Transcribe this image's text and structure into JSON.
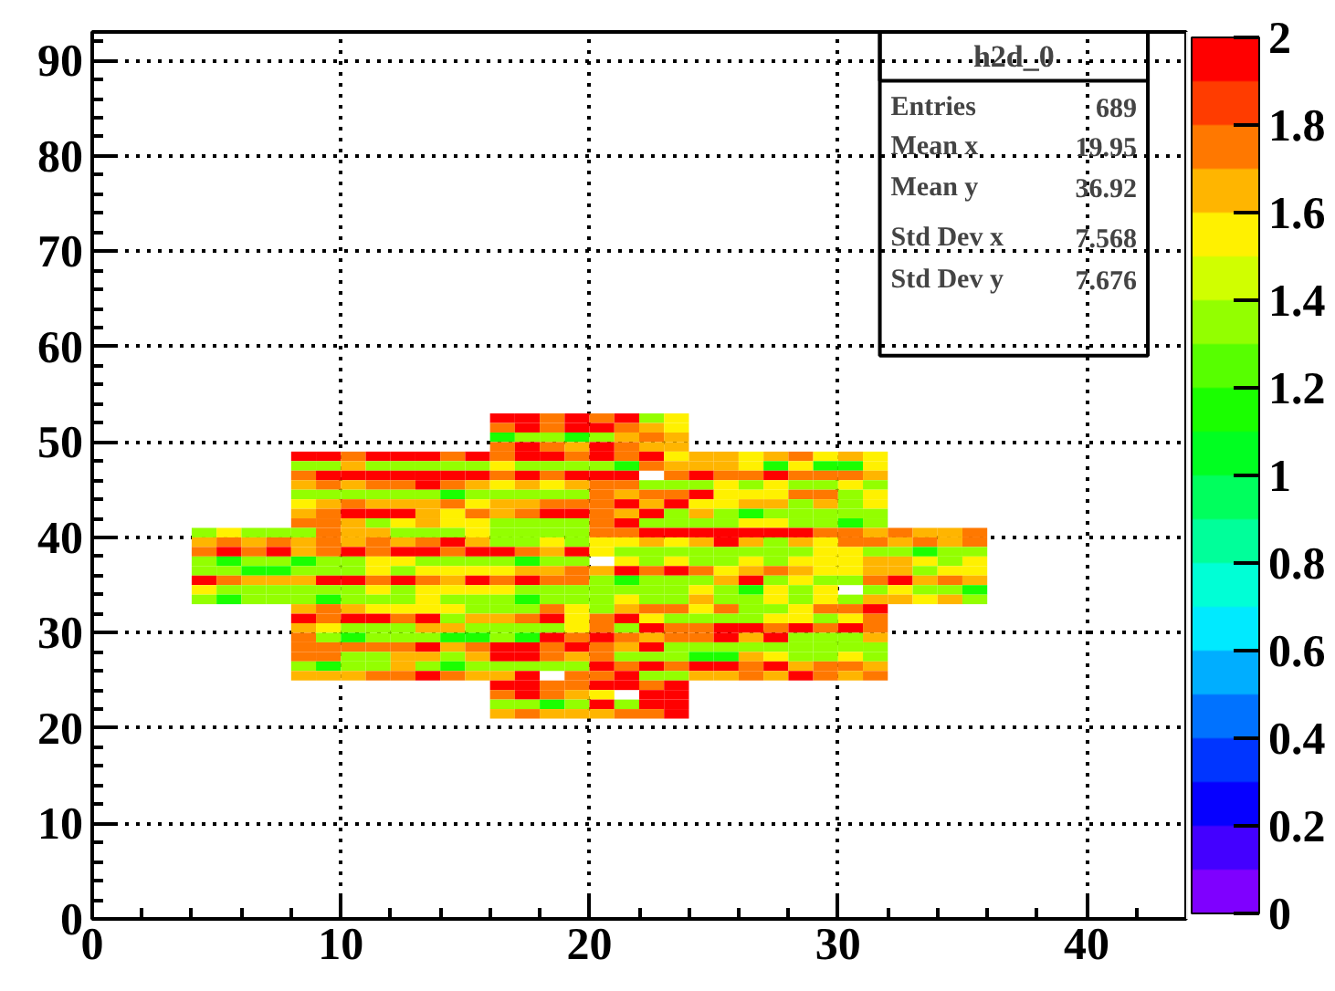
{
  "chart_data": {
    "type": "scatter",
    "marker": "square",
    "title": "h2d_0",
    "annotations": [
      "Entries 689",
      "Mean x 19.95",
      "Mean y 36.92",
      "Std Dev x 7.568",
      "Std Dev y 7.676"
    ],
    "xlim": [
      0,
      44
    ],
    "xticks": [
      0,
      10,
      20,
      30,
      40
    ],
    "ylim": [
      0,
      93
    ],
    "yticks": [
      0,
      10,
      20,
      30,
      40,
      50,
      60,
      70,
      80,
      90
    ],
    "clim": [
      0,
      2
    ],
    "cticks": [
      0,
      0.2,
      0.4,
      0.6,
      0.8,
      1,
      1.2,
      1.4,
      1.6,
      1.8,
      2
    ],
    "grid": true,
    "x": [
      16.5,
      17.5,
      18.5,
      19.5,
      20.5,
      21.5,
      22.5,
      23.5,
      16.5,
      17.5,
      18.5,
      19.5,
      20.5,
      21.5,
      22.5,
      23.5,
      16.5,
      17.5,
      18.5,
      19.5,
      20.5,
      21.5,
      22.5,
      23.5,
      16.5,
      17.5,
      18.5,
      19.5,
      20.5,
      21.5,
      22.5,
      23.5,
      8.5,
      9.5,
      10.5,
      11.5,
      12.5,
      13.5,
      14.5,
      15.5,
      16.5,
      17.5,
      18.5,
      19.5,
      20.5,
      21.5,
      22.5,
      23.5,
      24.5,
      25.5,
      26.5,
      27.5,
      28.5,
      29.5,
      30.5,
      31.5,
      8.5,
      9.5,
      10.5,
      11.5,
      12.5,
      13.5,
      14.5,
      15.5,
      16.5,
      17.5,
      18.5,
      19.5,
      20.5,
      21.5,
      22.5,
      23.5,
      24.5,
      25.5,
      26.5,
      27.5,
      28.5,
      29.5,
      30.5,
      31.5,
      8.5,
      9.5,
      10.5,
      11.5,
      12.5,
      13.5,
      14.5,
      15.5,
      16.5,
      17.5,
      18.5,
      19.5,
      20.5,
      21.5,
      23.5,
      24.5,
      25.5,
      26.5,
      27.5,
      28.5,
      29.5,
      30.5,
      31.5,
      8.5,
      9.5,
      10.5,
      11.5,
      12.5,
      13.5,
      14.5,
      15.5,
      16.5,
      17.5,
      18.5,
      19.5,
      20.5,
      21.5,
      22.5,
      23.5,
      24.5,
      25.5,
      26.5,
      27.5,
      28.5,
      29.5,
      30.5,
      31.5,
      8.5,
      9.5,
      10.5,
      11.5,
      12.5,
      13.5,
      14.5,
      15.5,
      16.5,
      17.5,
      18.5,
      19.5,
      20.5,
      21.5,
      22.5,
      23.5,
      24.5,
      25.5,
      26.5,
      27.5,
      28.5,
      29.5,
      30.5,
      31.5,
      8.5,
      9.5,
      10.5,
      11.5,
      12.5,
      13.5,
      14.5,
      15.5,
      16.5,
      17.5,
      18.5,
      19.5,
      20.5,
      21.5,
      22.5,
      23.5,
      24.5,
      25.5,
      26.5,
      27.5,
      28.5,
      29.5,
      30.5,
      31.5,
      8.5,
      9.5,
      10.5,
      11.5,
      12.5,
      13.5,
      14.5,
      15.5,
      16.5,
      17.5,
      18.5,
      19.5,
      20.5,
      21.5,
      22.5,
      23.5,
      24.5,
      25.5,
      26.5,
      27.5,
      28.5,
      29.5,
      30.5,
      31.5,
      8.5,
      9.5,
      10.5,
      11.5,
      12.5,
      13.5,
      14.5,
      15.5,
      16.5,
      17.5,
      18.5,
      19.5,
      20.5,
      21.5,
      22.5,
      23.5,
      24.5,
      25.5,
      26.5,
      27.5,
      28.5,
      29.5,
      30.5,
      31.5,
      4.5,
      5.5,
      6.5,
      7.5,
      8.5,
      9.5,
      10.5,
      11.5,
      12.5,
      13.5,
      14.5,
      15.5,
      16.5,
      17.5,
      18.5,
      19.5,
      20.5,
      21.5,
      22.5,
      23.5,
      24.5,
      25.5,
      26.5,
      27.5,
      28.5,
      29.5,
      30.5,
      31.5,
      32.5,
      33.5,
      34.5,
      35.5,
      4.5,
      5.5,
      6.5,
      7.5,
      8.5,
      9.5,
      10.5,
      11.5,
      12.5,
      13.5,
      14.5,
      15.5,
      16.5,
      17.5,
      18.5,
      19.5,
      20.5,
      21.5,
      22.5,
      23.5,
      24.5,
      25.5,
      26.5,
      27.5,
      28.5,
      29.5,
      30.5,
      31.5,
      32.5,
      33.5,
      34.5,
      35.5,
      4.5,
      5.5,
      6.5,
      7.5,
      8.5,
      9.5,
      10.5,
      11.5,
      12.5,
      13.5,
      14.5,
      15.5,
      16.5,
      17.5,
      18.5,
      19.5,
      20.5,
      21.5,
      22.5,
      23.5,
      24.5,
      25.5,
      26.5,
      27.5,
      28.5,
      29.5,
      30.5,
      31.5,
      32.5,
      33.5,
      34.5,
      35.5,
      4.5,
      5.5,
      6.5,
      7.5,
      8.5,
      9.5,
      10.5,
      11.5,
      12.5,
      13.5,
      14.5,
      15.5,
      16.5,
      17.5,
      18.5,
      19.5,
      21.5,
      22.5,
      23.5,
      24.5,
      25.5,
      26.5,
      27.5,
      28.5,
      29.5,
      30.5,
      31.5,
      32.5,
      33.5,
      34.5,
      35.5,
      4.5,
      5.5,
      6.5,
      7.5,
      8.5,
      9.5,
      10.5,
      11.5,
      12.5,
      13.5,
      14.5,
      15.5,
      16.5,
      17.5,
      18.5,
      19.5,
      20.5,
      21.5,
      22.5,
      23.5,
      24.5,
      25.5,
      26.5,
      27.5,
      28.5,
      29.5,
      30.5,
      31.5,
      32.5,
      33.5,
      34.5,
      35.5,
      4.5,
      5.5,
      6.5,
      7.5,
      8.5,
      9.5,
      10.5,
      11.5,
      12.5,
      13.5,
      14.5,
      15.5,
      16.5,
      17.5,
      18.5,
      19.5,
      20.5,
      21.5,
      22.5,
      23.5,
      24.5,
      25.5,
      26.5,
      27.5,
      28.5,
      29.5,
      30.5,
      31.5,
      32.5,
      33.5,
      34.5,
      35.5,
      4.5,
      5.5,
      6.5,
      7.5,
      8.5,
      9.5,
      10.5,
      11.5,
      12.5,
      13.5,
      14.5,
      15.5,
      16.5,
      17.5,
      18.5,
      19.5,
      20.5,
      21.5,
      22.5,
      23.5,
      24.5,
      25.5,
      26.5,
      27.5,
      28.5,
      29.5,
      31.5,
      32.5,
      33.5,
      34.5,
      35.5,
      4.5,
      5.5,
      6.5,
      7.5,
      8.5,
      9.5,
      10.5,
      11.5,
      12.5,
      13.5,
      14.5,
      15.5,
      16.5,
      17.5,
      18.5,
      19.5,
      20.5,
      21.5,
      22.5,
      23.5,
      24.5,
      25.5,
      26.5,
      27.5,
      28.5,
      29.5,
      30.5,
      31.5,
      32.5,
      33.5,
      34.5,
      35.5,
      8.5,
      9.5,
      10.5,
      11.5,
      12.5,
      13.5,
      14.5,
      15.5,
      16.5,
      17.5,
      18.5,
      19.5,
      20.5,
      21.5,
      22.5,
      23.5,
      24.5,
      25.5,
      26.5,
      27.5,
      28.5,
      29.5,
      30.5,
      31.5,
      8.5,
      9.5,
      10.5,
      11.5,
      12.5,
      13.5,
      14.5,
      15.5,
      16.5,
      17.5,
      18.5,
      19.5,
      20.5,
      21.5,
      22.5,
      23.5,
      24.5,
      25.5,
      26.5,
      27.5,
      28.5,
      29.5,
      30.5,
      31.5,
      8.5,
      9.5,
      10.5,
      11.5,
      12.5,
      13.5,
      14.5,
      15.5,
      16.5,
      17.5,
      18.5,
      19.5,
      20.5,
      21.5,
      22.5,
      23.5,
      24.5,
      25.5,
      26.5,
      27.5,
      28.5,
      29.5,
      30.5,
      31.5,
      8.5,
      9.5,
      10.5,
      11.5,
      12.5,
      13.5,
      14.5,
      15.5,
      16.5,
      17.5,
      18.5,
      19.5,
      20.5,
      21.5,
      22.5,
      23.5,
      24.5,
      25.5,
      26.5,
      27.5,
      28.5,
      29.5,
      30.5,
      31.5,
      8.5,
      9.5,
      10.5,
      11.5,
      12.5,
      13.5,
      14.5,
      15.5,
      16.5,
      17.5,
      18.5,
      19.5,
      20.5,
      21.5,
      22.5,
      23.5,
      24.5,
      25.5,
      26.5,
      27.5,
      28.5,
      29.5,
      30.5,
      31.5,
      8.5,
      9.5,
      10.5,
      11.5,
      12.5,
      13.5,
      14.5,
      15.5,
      16.5,
      17.5,
      18.5,
      19.5,
      20.5,
      21.5,
      22.5,
      23.5,
      24.5,
      25.5,
      26.5,
      27.5,
      28.5,
      29.5,
      30.5,
      31.5,
      8.5,
      9.5,
      10.5,
      11.5,
      12.5,
      13.5,
      14.5,
      15.5,
      16.5,
      17.5,
      18.5,
      19.5,
      20.5,
      21.5,
      22.5,
      23.5,
      24.5,
      25.5,
      26.5,
      27.5,
      28.5,
      29.5,
      30.5,
      31.5,
      8.5,
      9.5,
      10.5,
      11.5,
      12.5,
      13.5,
      14.5,
      15.5,
      16.5,
      17.5,
      19.5,
      20.5,
      21.5,
      22.5,
      23.5,
      24.5,
      25.5,
      26.5,
      27.5,
      28.5,
      29.5,
      30.5,
      31.5,
      16.5,
      17.5,
      18.5,
      19.5,
      20.5,
      21.5,
      22.5,
      23.5,
      16.5,
      17.5,
      18.5,
      19.5,
      20.5,
      22.5,
      23.5,
      16.5,
      17.5,
      18.5,
      19.5,
      20.5,
      21.5,
      22.5,
      23.5,
      16.5,
      17.5,
      18.5,
      19.5,
      20.5,
      21.5,
      22.5,
      23.5
    ],
    "values": [
      52.5,
      52.5,
      52.5,
      52.5,
      52.5,
      52.5,
      52.5,
      52.5,
      51.5,
      51.5,
      51.5,
      51.5,
      51.5,
      51.5,
      51.5,
      51.5,
      50.5,
      50.5,
      50.5,
      50.5,
      50.5,
      50.5,
      50.5,
      50.5,
      49.5,
      49.5,
      49.5,
      49.5,
      49.5,
      49.5,
      49.5,
      49.5,
      48.5,
      48.5,
      48.5,
      48.5,
      48.5,
      48.5,
      48.5,
      48.5,
      48.5,
      48.5,
      48.5,
      48.5,
      48.5,
      48.5,
      48.5,
      48.5,
      48.5,
      48.5,
      48.5,
      48.5,
      48.5,
      48.5,
      48.5,
      48.5,
      47.5,
      47.5,
      47.5,
      47.5,
      47.5,
      47.5,
      47.5,
      47.5,
      47.5,
      47.5,
      47.5,
      47.5,
      47.5,
      47.5,
      47.5,
      47.5,
      47.5,
      47.5,
      47.5,
      47.5,
      47.5,
      47.5,
      47.5,
      47.5,
      46.5,
      46.5,
      46.5,
      46.5,
      46.5,
      46.5,
      46.5,
      46.5,
      46.5,
      46.5,
      46.5,
      46.5,
      46.5,
      46.5,
      46.5,
      46.5,
      46.5,
      46.5,
      46.5,
      46.5,
      46.5,
      46.5,
      46.5,
      45.5,
      45.5,
      45.5,
      45.5,
      45.5,
      45.5,
      45.5,
      45.5,
      45.5,
      45.5,
      45.5,
      45.5,
      45.5,
      45.5,
      45.5,
      45.5,
      45.5,
      45.5,
      45.5,
      45.5,
      45.5,
      45.5,
      45.5,
      45.5,
      44.5,
      44.5,
      44.5,
      44.5,
      44.5,
      44.5,
      44.5,
      44.5,
      44.5,
      44.5,
      44.5,
      44.5,
      44.5,
      44.5,
      44.5,
      44.5,
      44.5,
      44.5,
      44.5,
      44.5,
      44.5,
      44.5,
      44.5,
      44.5,
      43.5,
      43.5,
      43.5,
      43.5,
      43.5,
      43.5,
      43.5,
      43.5,
      43.5,
      43.5,
      43.5,
      43.5,
      43.5,
      43.5,
      43.5,
      43.5,
      43.5,
      43.5,
      43.5,
      43.5,
      43.5,
      43.5,
      43.5,
      43.5,
      42.5,
      42.5,
      42.5,
      42.5,
      42.5,
      42.5,
      42.5,
      42.5,
      42.5,
      42.5,
      42.5,
      42.5,
      42.5,
      42.5,
      42.5,
      42.5,
      42.5,
      42.5,
      42.5,
      42.5,
      42.5,
      42.5,
      42.5,
      42.5,
      41.5,
      41.5,
      41.5,
      41.5,
      41.5,
      41.5,
      41.5,
      41.5,
      41.5,
      41.5,
      41.5,
      41.5,
      41.5,
      41.5,
      41.5,
      41.5,
      41.5,
      41.5,
      41.5,
      41.5,
      41.5,
      41.5,
      41.5,
      41.5,
      40.5,
      40.5,
      40.5,
      40.5,
      40.5,
      40.5,
      40.5,
      40.5,
      40.5,
      40.5,
      40.5,
      40.5,
      40.5,
      40.5,
      40.5,
      40.5,
      40.5,
      40.5,
      40.5,
      40.5,
      40.5,
      40.5,
      40.5,
      40.5,
      40.5,
      40.5,
      40.5,
      40.5,
      40.5,
      40.5,
      40.5,
      40.5,
      39.5,
      39.5,
      39.5,
      39.5,
      39.5,
      39.5,
      39.5,
      39.5,
      39.5,
      39.5,
      39.5,
      39.5,
      39.5,
      39.5,
      39.5,
      39.5,
      39.5,
      39.5,
      39.5,
      39.5,
      39.5,
      39.5,
      39.5,
      39.5,
      39.5,
      39.5,
      39.5,
      39.5,
      39.5,
      39.5,
      39.5,
      39.5,
      38.5,
      38.5,
      38.5,
      38.5,
      38.5,
      38.5,
      38.5,
      38.5,
      38.5,
      38.5,
      38.5,
      38.5,
      38.5,
      38.5,
      38.5,
      38.5,
      38.5,
      38.5,
      38.5,
      38.5,
      38.5,
      38.5,
      38.5,
      38.5,
      38.5,
      38.5,
      38.5,
      38.5,
      38.5,
      38.5,
      38.5,
      38.5,
      37.5,
      37.5,
      37.5,
      37.5,
      37.5,
      37.5,
      37.5,
      37.5,
      37.5,
      37.5,
      37.5,
      37.5,
      37.5,
      37.5,
      37.5,
      37.5,
      37.5,
      37.5,
      37.5,
      37.5,
      37.5,
      37.5,
      37.5,
      37.5,
      37.5,
      37.5,
      37.5,
      37.5,
      37.5,
      37.5,
      37.5,
      36.5,
      36.5,
      36.5,
      36.5,
      36.5,
      36.5,
      36.5,
      36.5,
      36.5,
      36.5,
      36.5,
      36.5,
      36.5,
      36.5,
      36.5,
      36.5,
      36.5,
      36.5,
      36.5,
      36.5,
      36.5,
      36.5,
      36.5,
      36.5,
      36.5,
      36.5,
      36.5,
      36.5,
      36.5,
      36.5,
      36.5,
      36.5,
      35.5,
      35.5,
      35.5,
      35.5,
      35.5,
      35.5,
      35.5,
      35.5,
      35.5,
      35.5,
      35.5,
      35.5,
      35.5,
      35.5,
      35.5,
      35.5,
      35.5,
      35.5,
      35.5,
      35.5,
      35.5,
      35.5,
      35.5,
      35.5,
      35.5,
      35.5,
      35.5,
      35.5,
      35.5,
      35.5,
      35.5,
      35.5,
      34.5,
      34.5,
      34.5,
      34.5,
      34.5,
      34.5,
      34.5,
      34.5,
      34.5,
      34.5,
      34.5,
      34.5,
      34.5,
      34.5,
      34.5,
      34.5,
      34.5,
      34.5,
      34.5,
      34.5,
      34.5,
      34.5,
      34.5,
      34.5,
      34.5,
      34.5,
      34.5,
      34.5,
      34.5,
      34.5,
      34.5,
      33.5,
      33.5,
      33.5,
      33.5,
      33.5,
      33.5,
      33.5,
      33.5,
      33.5,
      33.5,
      33.5,
      33.5,
      33.5,
      33.5,
      33.5,
      33.5,
      33.5,
      33.5,
      33.5,
      33.5,
      33.5,
      33.5,
      33.5,
      33.5,
      33.5,
      33.5,
      33.5,
      33.5,
      33.5,
      33.5,
      33.5,
      33.5,
      32.5,
      32.5,
      32.5,
      32.5,
      32.5,
      32.5,
      32.5,
      32.5,
      32.5,
      32.5,
      32.5,
      32.5,
      32.5,
      32.5,
      32.5,
      32.5,
      32.5,
      32.5,
      32.5,
      32.5,
      32.5,
      32.5,
      32.5,
      32.5,
      31.5,
      31.5,
      31.5,
      31.5,
      31.5,
      31.5,
      31.5,
      31.5,
      31.5,
      31.5,
      31.5,
      31.5,
      31.5,
      31.5,
      31.5,
      31.5,
      31.5,
      31.5,
      31.5,
      31.5,
      31.5,
      31.5,
      31.5,
      31.5,
      30.5,
      30.5,
      30.5,
      30.5,
      30.5,
      30.5,
      30.5,
      30.5,
      30.5,
      30.5,
      30.5,
      30.5,
      30.5,
      30.5,
      30.5,
      30.5,
      30.5,
      30.5,
      30.5,
      30.5,
      30.5,
      30.5,
      30.5,
      30.5,
      29.5,
      29.5,
      29.5,
      29.5,
      29.5,
      29.5,
      29.5,
      29.5,
      29.5,
      29.5,
      29.5,
      29.5,
      29.5,
      29.5,
      29.5,
      29.5,
      29.5,
      29.5,
      29.5,
      29.5,
      29.5,
      29.5,
      29.5,
      29.5,
      28.5,
      28.5,
      28.5,
      28.5,
      28.5,
      28.5,
      28.5,
      28.5,
      28.5,
      28.5,
      28.5,
      28.5,
      28.5,
      28.5,
      28.5,
      28.5,
      28.5,
      28.5,
      28.5,
      28.5,
      28.5,
      28.5,
      28.5,
      28.5,
      27.5,
      27.5,
      27.5,
      27.5,
      27.5,
      27.5,
      27.5,
      27.5,
      27.5,
      27.5,
      27.5,
      27.5,
      27.5,
      27.5,
      27.5,
      27.5,
      27.5,
      27.5,
      27.5,
      27.5,
      27.5,
      27.5,
      27.5,
      27.5,
      26.5,
      26.5,
      26.5,
      26.5,
      26.5,
      26.5,
      26.5,
      26.5,
      26.5,
      26.5,
      26.5,
      26.5,
      26.5,
      26.5,
      26.5,
      26.5,
      26.5,
      26.5,
      26.5,
      26.5,
      26.5,
      26.5,
      26.5,
      26.5,
      25.5,
      25.5,
      25.5,
      25.5,
      25.5,
      25.5,
      25.5,
      25.5,
      25.5,
      25.5,
      25.5,
      25.5,
      25.5,
      25.5,
      25.5,
      25.5,
      25.5,
      25.5,
      25.5,
      25.5,
      25.5,
      25.5,
      25.5,
      24.5,
      24.5,
      24.5,
      24.5,
      24.5,
      24.5,
      24.5,
      24.5,
      23.5,
      23.5,
      23.5,
      23.5,
      23.5,
      23.5,
      23.5,
      22.5,
      22.5,
      22.5,
      22.5,
      22.5,
      22.5,
      22.5,
      22.5,
      21.5,
      21.5,
      21.5,
      21.5,
      21.5,
      21.5,
      21.5,
      21.5
    ],
    "cvalues": [
      1.95,
      1.95,
      1.75,
      1.95,
      1.75,
      1.95,
      1.35,
      1.55,
      1.75,
      1.95,
      1.75,
      1.95,
      1.95,
      1.75,
      1.65,
      1.55,
      1.15,
      1.35,
      1.35,
      1.15,
      1.35,
      1.65,
      1.75,
      1.65,
      1.75,
      1.95,
      1.75,
      1.65,
      1.95,
      1.75,
      1.65,
      1.65,
      1.95,
      1.95,
      1.75,
      1.95,
      1.95,
      1.95,
      1.75,
      1.95,
      1.75,
      1.95,
      1.95,
      1.75,
      1.95,
      1.75,
      1.95,
      1.55,
      1.65,
      1.65,
      1.55,
      1.65,
      1.75,
      1.55,
      1.65,
      1.55,
      1.35,
      1.35,
      1.65,
      1.35,
      1.35,
      1.35,
      1.35,
      1.35,
      1.55,
      1.35,
      1.35,
      1.35,
      1.35,
      1.15,
      1.75,
      1.65,
      1.65,
      1.65,
      1.55,
      1.15,
      1.55,
      1.15,
      1.15,
      1.55,
      1.75,
      1.95,
      1.95,
      1.95,
      1.95,
      1.95,
      1.95,
      1.95,
      1.75,
      1.95,
      1.75,
      1.95,
      1.95,
      1.95,
      1.75,
      1.95,
      1.75,
      1.75,
      1.95,
      1.75,
      1.75,
      1.75,
      1.65,
      1.65,
      1.75,
      1.65,
      1.75,
      1.75,
      1.95,
      1.75,
      1.65,
      1.55,
      1.65,
      1.55,
      1.65,
      1.75,
      1.75,
      1.35,
      1.35,
      1.35,
      1.55,
      1.35,
      1.55,
      1.35,
      1.35,
      1.55,
      1.35,
      1.35,
      1.35,
      1.35,
      1.35,
      1.35,
      1.35,
      1.15,
      1.35,
      1.35,
      1.35,
      1.35,
      1.35,
      1.75,
      1.65,
      1.75,
      1.75,
      1.95,
      1.55,
      1.55,
      1.55,
      1.75,
      1.75,
      1.35,
      1.55,
      1.55,
      1.65,
      1.75,
      1.65,
      1.65,
      1.65,
      1.75,
      1.55,
      1.65,
      1.65,
      1.75,
      1.75,
      1.75,
      1.95,
      1.65,
      1.95,
      1.55,
      1.55,
      1.65,
      1.65,
      1.35,
      1.65,
      1.35,
      1.55,
      1.65,
      1.75,
      1.95,
      1.95,
      1.95,
      1.65,
      1.55,
      1.75,
      1.65,
      1.75,
      1.95,
      1.95,
      1.75,
      1.65,
      1.95,
      1.35,
      1.65,
      1.35,
      1.15,
      1.35,
      1.35,
      1.35,
      1.35,
      1.35,
      1.75,
      1.75,
      1.65,
      1.35,
      1.55,
      1.65,
      1.55,
      1.55,
      1.35,
      1.35,
      1.35,
      1.35,
      1.75,
      1.95,
      1.35,
      1.35,
      1.35,
      1.35,
      1.55,
      1.55,
      1.35,
      1.35,
      1.15,
      1.35,
      1.35,
      1.55,
      1.35,
      1.35,
      1.35,
      1.75,
      1.65,
      1.65,
      1.35,
      1.35,
      1.35,
      1.55,
      1.35,
      1.35,
      1.35,
      1.35,
      1.75,
      1.75,
      1.95,
      1.95,
      1.95,
      1.95,
      1.95,
      1.95,
      1.95,
      1.75,
      1.75,
      1.65,
      1.75,
      1.65,
      1.65,
      1.75,
      1.65,
      1.75,
      1.65,
      1.75,
      1.65,
      1.75,
      1.65,
      1.75,
      1.65,
      1.75,
      1.95,
      1.65,
      1.35,
      1.35,
      1.55,
      1.35,
      1.55,
      1.55,
      1.65,
      1.55,
      1.65,
      1.95,
      1.65,
      1.35,
      1.65,
      1.55,
      1.75,
      1.75,
      1.65,
      1.75,
      1.65,
      1.75,
      1.75,
      1.95,
      1.75,
      1.95,
      1.65,
      1.75,
      1.95,
      1.75,
      1.95,
      1.95,
      1.75,
      1.95,
      1.95,
      1.75,
      1.65,
      1.95,
      1.55,
      1.35,
      1.35,
      1.35,
      1.35,
      1.35,
      1.35,
      1.35,
      1.35,
      1.55,
      1.55,
      1.35,
      1.35,
      1.15,
      1.35,
      1.35,
      1.35,
      1.15,
      1.35,
      1.35,
      1.15,
      1.35,
      1.35,
      1.55,
      1.55,
      1.35,
      1.35,
      1.35,
      1.35,
      1.15,
      1.35,
      1.35,
      1.55,
      1.35,
      1.55,
      1.35,
      1.35,
      1.55,
      1.35,
      1.55,
      1.55,
      1.55,
      1.65,
      1.65,
      1.55,
      1.35,
      1.55,
      1.35,
      1.35,
      1.15,
      1.15,
      1.35,
      1.35,
      1.35,
      1.55,
      1.35,
      1.55,
      1.55,
      1.55,
      1.55,
      1.65,
      1.65,
      1.75,
      1.65,
      1.95,
      1.75,
      1.95,
      1.75,
      1.55,
      1.65,
      1.75,
      1.65,
      1.55,
      1.55,
      1.65,
      1.65,
      1.35,
      1.55,
      1.55,
      1.95,
      1.75,
      1.65,
      1.65,
      1.65,
      1.95,
      1.95,
      1.75,
      1.95,
      1.75,
      1.65,
      1.95,
      1.75,
      1.95,
      1.75,
      1.75,
      1.35,
      1.15,
      1.35,
      1.35,
      1.35,
      1.65,
      1.95,
      1.35,
      1.55,
      1.35,
      1.35,
      1.75,
      1.95,
      1.65,
      1.75,
      1.65,
      1.55,
      1.35,
      1.35,
      1.35,
      1.35,
      1.35,
      1.35,
      1.55,
      1.35,
      1.55,
      1.55,
      1.55,
      1.55,
      1.35,
      1.35,
      1.35,
      1.35,
      1.35,
      1.35,
      1.35,
      1.55,
      1.35,
      1.15,
      1.55,
      1.35,
      1.55,
      1.35,
      1.55,
      1.35,
      1.35,
      1.15,
      1.35,
      1.15,
      1.35,
      1.35,
      1.35,
      1.15,
      1.35,
      1.35,
      1.35,
      1.55,
      1.35,
      1.35,
      1.35,
      1.15,
      1.35,
      1.35,
      1.35,
      1.55,
      1.35,
      1.35,
      1.65,
      1.35,
      1.35,
      1.55,
      1.35,
      1.55,
      1.35,
      1.65,
      1.65,
      1.55,
      1.65,
      1.35,
      1.65,
      1.75,
      1.65,
      1.55,
      1.55,
      1.55,
      1.55,
      1.35,
      1.35,
      1.35,
      1.75,
      1.55,
      1.35,
      1.65,
      1.75,
      1.75,
      1.55,
      1.75,
      1.35,
      1.35,
      1.55,
      1.75,
      1.75,
      1.95,
      1.95,
      1.75,
      1.95,
      1.95,
      1.75,
      1.95,
      1.35,
      1.65,
      1.65,
      1.75,
      1.95,
      1.55,
      1.75,
      1.95,
      1.55,
      1.35,
      1.35,
      1.35,
      1.35,
      1.55,
      1.55,
      1.35,
      1.55,
      1.75,
      1.65,
      1.55,
      1.35,
      1.35,
      1.35,
      1.65,
      1.65,
      1.35,
      1.35,
      1.35,
      1.35,
      1.55,
      1.75,
      1.35,
      1.95,
      1.75,
      1.75,
      1.95,
      1.95,
      1.75,
      1.95,
      1.75,
      1.95,
      1.75,
      1.75,
      1.35,
      1.15,
      1.35,
      1.35,
      1.35,
      1.15,
      1.15,
      1.35,
      1.15,
      1.95,
      1.75,
      1.95,
      1.75,
      1.65,
      1.75,
      1.75,
      1.95,
      1.65,
      1.95,
      1.35,
      1.35,
      1.35,
      1.65,
      1.75,
      1.75,
      1.75,
      1.75,
      1.75,
      1.95,
      1.65,
      1.75,
      1.95,
      1.95,
      1.75,
      1.95,
      1.75,
      1.65,
      1.95,
      1.35,
      1.35,
      1.35,
      1.35,
      1.35,
      1.35,
      1.35,
      1.35,
      1.35,
      1.75,
      1.75,
      1.35,
      1.35,
      1.65,
      1.65,
      1.35,
      1.65,
      1.95,
      1.95,
      1.75,
      1.65,
      1.75,
      1.35,
      1.35,
      1.35,
      1.15,
      1.15,
      1.65,
      1.55,
      1.35,
      1.35,
      1.55,
      1.35,
      1.35,
      1.15,
      1.35,
      1.35,
      1.65,
      1.35,
      1.15,
      1.35,
      1.35,
      1.35,
      1.35,
      1.35,
      1.95,
      1.75,
      1.95,
      1.75,
      1.95,
      1.95,
      1.75,
      1.95,
      1.65,
      1.75,
      1.75,
      1.65,
      1.65,
      1.65,
      1.65,
      1.75,
      1.75,
      1.95,
      1.75,
      1.65,
      1.65,
      1.95,
      1.75,
      1.75,
      1.95,
      1.35,
      1.35,
      1.65,
      1.65,
      1.75,
      1.65,
      1.95,
      1.75,
      1.65,
      1.75,
      1.95,
      1.95,
      1.75,
      1.75,
      1.95,
      1.95,
      1.75,
      1.95,
      1.75,
      1.95,
      1.75,
      1.65,
      1.55,
      1.95,
      1.95,
      1.35,
      1.35,
      1.15,
      1.35,
      1.95,
      1.35,
      1.95,
      1.95,
      1.65,
      1.75,
      1.65,
      1.65,
      1.65,
      1.75,
      1.75,
      1.95
    ]
  }
}
